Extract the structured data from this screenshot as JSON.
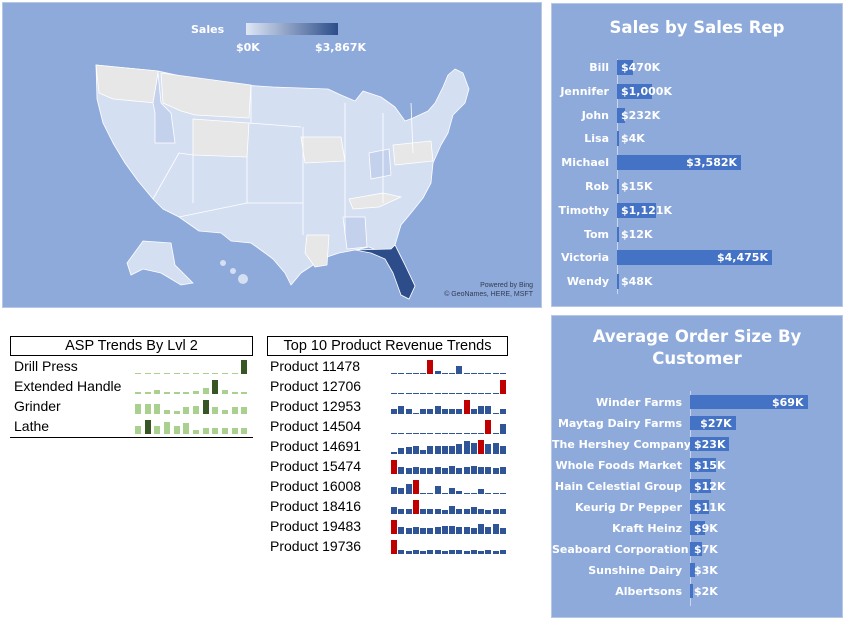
{
  "map": {
    "legend_title": "Sales",
    "legend_min": "$0K",
    "legend_max": "$3,867K",
    "attribution_line1": "Powered by Bing",
    "attribution_line2": "© GeoNames, HERE, MSFT",
    "colors": {
      "background": "#8eaadb",
      "no_data": "#e7e7e7",
      "low": "#dfe7f5",
      "high": "#2c4d8a"
    }
  },
  "chart_data": [
    {
      "type": "bar",
      "orientation": "horizontal",
      "title": "Sales by Sales Rep",
      "categories": [
        "Bill",
        "Jennifer",
        "John",
        "Lisa",
        "Michael",
        "Rob",
        "Timothy",
        "Tom",
        "Victoria",
        "Wendy"
      ],
      "values": [
        470,
        1000,
        232,
        4,
        3582,
        15,
        1121,
        12,
        4475,
        48
      ],
      "labels": [
        "$470K",
        "$1,000K",
        "$232K",
        "$4K",
        "$3,582K",
        "$15K",
        "$1,121K",
        "$12K",
        "$4,475K",
        "$48K"
      ],
      "unit": "$K",
      "xlim": [
        0,
        4475
      ]
    },
    {
      "type": "bar",
      "orientation": "horizontal",
      "title": "Average Order Size By Customer",
      "categories": [
        "Winder Farms",
        "Maytag Dairy Farms",
        "The Hershey Company",
        "Whole Foods Market",
        "Hain Celestial Group",
        "Keurig Dr Pepper",
        "Kraft Heinz",
        "Seaboard Corporation",
        "Sunshine Dairy",
        "Albertsons"
      ],
      "values": [
        69,
        27,
        23,
        15,
        12,
        11,
        9,
        7,
        3,
        2
      ],
      "labels": [
        "$69K",
        "$27K",
        "$23K",
        "$15K",
        "$12K",
        "$11K",
        "$9K",
        "$7K",
        "$3K",
        "$2K"
      ],
      "unit": "$K",
      "xlim": [
        0,
        69
      ]
    },
    {
      "type": "bar",
      "subtype": "sparkline",
      "title": "ASP Trends  By Lvl 2",
      "highlight_color": "#375623",
      "bar_color": "#a9d08e",
      "rows": [
        {
          "label": "Drill Press",
          "values": [
            0.1,
            0.05,
            0.05,
            0.05,
            0.05,
            0.05,
            0.05,
            0.05,
            0.05,
            0.05,
            0.05,
            1.0
          ]
        },
        {
          "label": "Extended Handle",
          "values": [
            0.12,
            0.12,
            0.3,
            0.15,
            0.12,
            0.12,
            0.25,
            0.45,
            1.0,
            0.3,
            0.15,
            0.15
          ]
        },
        {
          "label": "Grinder",
          "values": [
            0.75,
            0.75,
            0.75,
            0.3,
            0.2,
            0.5,
            0.55,
            1.0,
            0.5,
            0.3,
            0.5,
            0.5
          ]
        },
        {
          "label": "Lathe",
          "values": [
            0.6,
            1.0,
            0.6,
            0.85,
            0.55,
            0.8,
            0.3,
            0.4,
            0.4,
            0.4,
            0.4,
            0.4
          ]
        }
      ]
    },
    {
      "type": "bar",
      "subtype": "sparkline",
      "title": "Top 10 Product Revenue Trends",
      "highlight_color": "#c00000",
      "bar_color": "#2f5597",
      "rows": [
        {
          "label": "Product 11478",
          "values": [
            0.1,
            0.1,
            0.1,
            0.1,
            0.1,
            1.0,
            0.25,
            0.1,
            0.1,
            0.55,
            0.1,
            0.1,
            0.1,
            0.1,
            0.1,
            0.1
          ]
        },
        {
          "label": "Product 12706",
          "values": [
            0,
            0,
            0,
            0,
            0,
            0,
            0,
            0,
            0,
            0,
            0,
            0,
            0,
            0,
            0,
            1.0
          ]
        },
        {
          "label": "Product 12953",
          "values": [
            0.35,
            0.55,
            0.35,
            0.1,
            0.35,
            0.35,
            0.55,
            0.35,
            0.35,
            0.35,
            1.0,
            0.35,
            0.55,
            0.6,
            0.1,
            0.35
          ]
        },
        {
          "label": "Product 14504",
          "values": [
            0.1,
            0.1,
            0.1,
            0.1,
            0.1,
            0.1,
            0.1,
            0.1,
            0.1,
            0.1,
            0.1,
            0.1,
            0.1,
            1.0,
            0.1,
            0.7
          ]
        },
        {
          "label": "Product 14691",
          "values": [
            0.15,
            0.45,
            0.5,
            0.55,
            0.3,
            0.55,
            0.55,
            0.55,
            0.6,
            0.75,
            0.9,
            0.8,
            1.0,
            0.75,
            0.8,
            0.6
          ]
        },
        {
          "label": "Product 15474",
          "values": [
            1.0,
            0.5,
            0.4,
            0.5,
            0.45,
            0.45,
            0.5,
            0.45,
            0.55,
            0.45,
            0.5,
            0.55,
            0.5,
            0.5,
            0.45,
            0.5
          ]
        },
        {
          "label": "Product 16008",
          "values": [
            0.5,
            0.4,
            0.7,
            1.0,
            0.1,
            0.1,
            0.6,
            0.1,
            0.45,
            0.2,
            0.1,
            0.1,
            0.35,
            0.1,
            0.1,
            0.1
          ]
        },
        {
          "label": "Product 18416",
          "values": [
            0.5,
            0.35,
            0.35,
            1.0,
            0.35,
            0.35,
            0.35,
            0.3,
            0.55,
            0.35,
            0.35,
            0.5,
            0.35,
            0.3,
            0.35,
            0.35
          ]
        },
        {
          "label": "Product 19483",
          "values": [
            1.0,
            0.5,
            0.45,
            0.5,
            0.4,
            0.45,
            0.5,
            0.6,
            0.55,
            0.5,
            0.5,
            0.45,
            0.7,
            0.5,
            0.7,
            0.45
          ]
        },
        {
          "label": "Product 19736",
          "values": [
            1.0,
            0.3,
            0.25,
            0.3,
            0.25,
            0.3,
            0.3,
            0.25,
            0.3,
            0.3,
            0.25,
            0.3,
            0.25,
            0.3,
            0.25,
            0.3
          ]
        }
      ]
    }
  ]
}
